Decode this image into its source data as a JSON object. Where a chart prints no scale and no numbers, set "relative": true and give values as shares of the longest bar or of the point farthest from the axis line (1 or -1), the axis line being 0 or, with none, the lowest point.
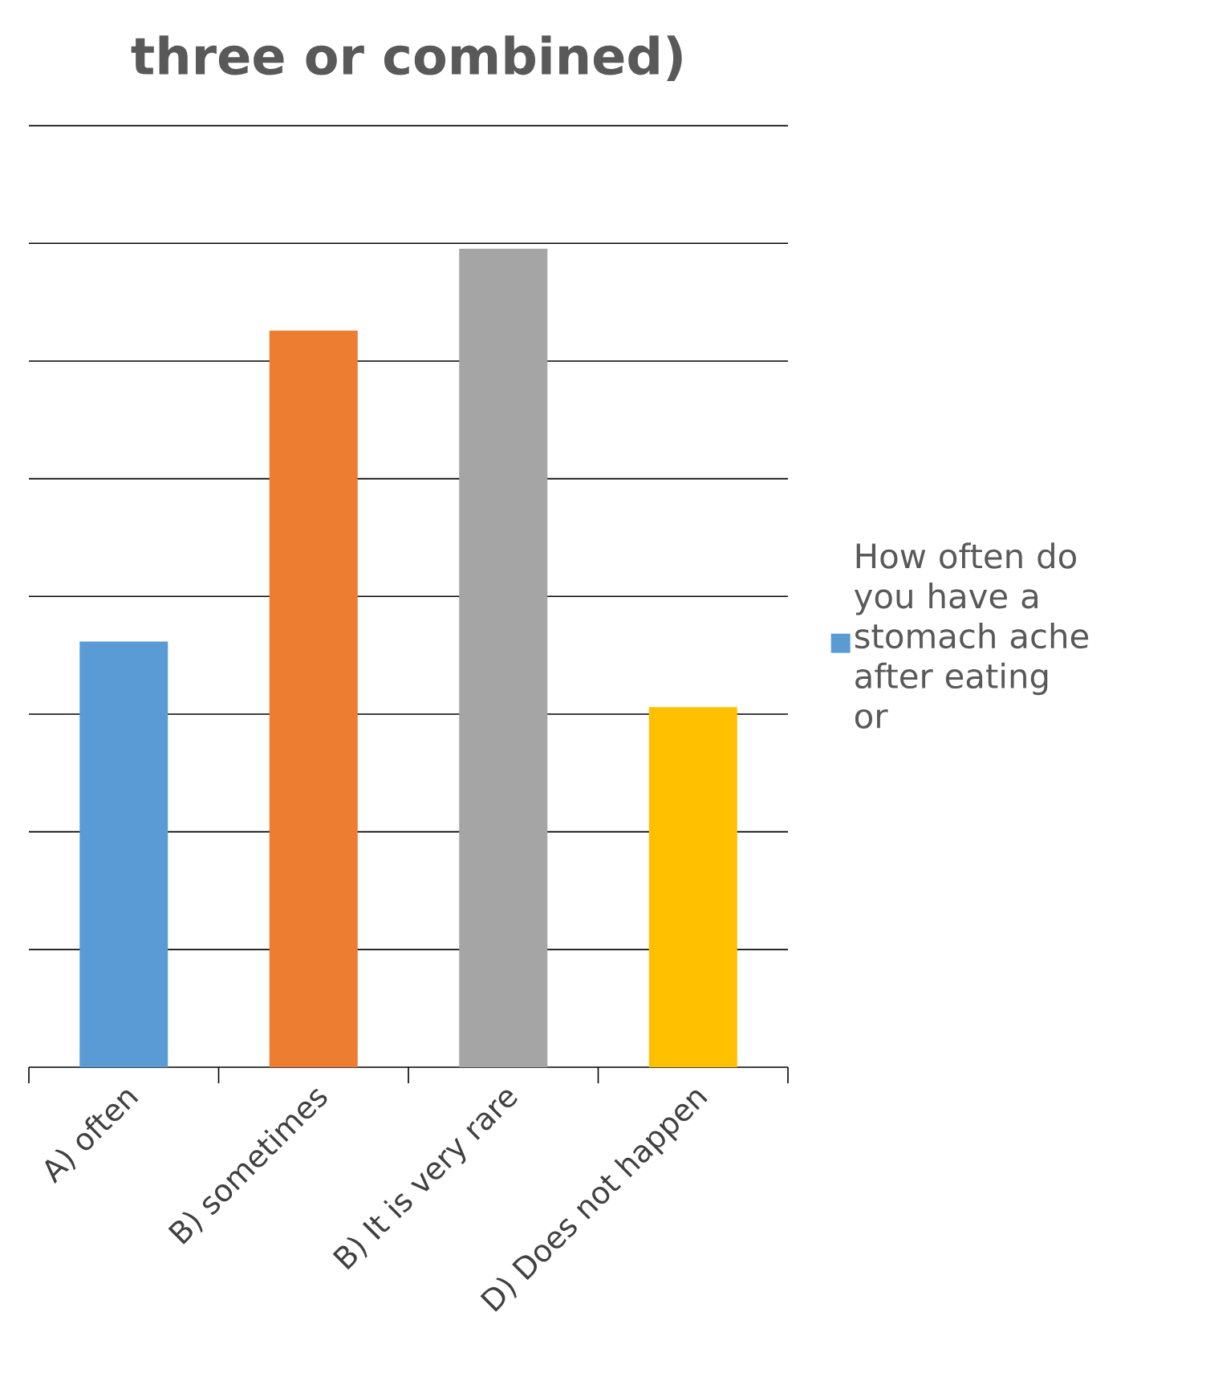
{
  "chart_data": {
    "type": "bar",
    "title": "three or combined)",
    "categories": [
      "A) often",
      "B) sometimes",
      "B) It is very rare",
      "D) Does not happen"
    ],
    "series": [
      {
        "name": "How often do you have a stomach ache after eating or",
        "color": "#5b9bd5",
        "colors": [
          "#5b9bd5",
          "#ed7d31",
          "#a5a5a5",
          "#ffc000"
        ],
        "values": [
          0.52,
          0.9,
          1,
          0.44
        ]
      }
    ],
    "relative": true,
    "grid": "y",
    "legend": "right"
  }
}
